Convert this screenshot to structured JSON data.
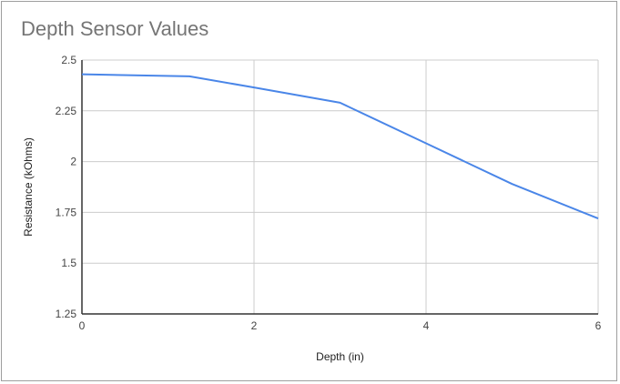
{
  "chart_data": {
    "type": "line",
    "title": "Depth Sensor Values",
    "xlabel": "Depth (in)",
    "ylabel": "Resistance (kOhms)",
    "xlim": [
      0,
      6
    ],
    "ylim": [
      1.25,
      2.5
    ],
    "xticks": [
      0,
      2,
      4,
      6
    ],
    "xtick_labels": [
      "0",
      "2",
      "4",
      "6"
    ],
    "yticks": [
      1.25,
      1.5,
      1.75,
      2,
      2.25,
      2.5
    ],
    "ytick_labels": [
      "1.25",
      "1.5",
      "1.75",
      "2",
      "2.25",
      "2.5"
    ],
    "grid": true,
    "legend": "none",
    "line_color": "#4a86e8",
    "series": [
      {
        "x": [
          0,
          1.25,
          2,
          3,
          4,
          5,
          6
        ],
        "y": [
          2.43,
          2.42,
          2.365,
          2.29,
          2.09,
          1.89,
          1.72
        ]
      }
    ]
  }
}
